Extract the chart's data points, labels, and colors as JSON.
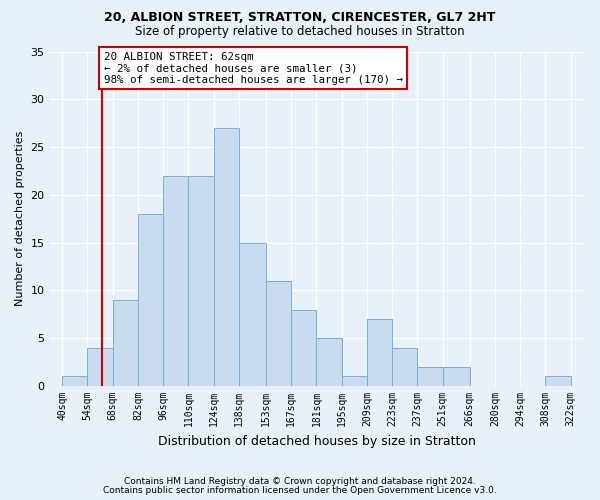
{
  "title1": "20, ALBION STREET, STRATTON, CIRENCESTER, GL7 2HT",
  "title2": "Size of property relative to detached houses in Stratton",
  "xlabel": "Distribution of detached houses by size in Stratton",
  "ylabel": "Number of detached properties",
  "footer1": "Contains HM Land Registry data © Crown copyright and database right 2024.",
  "footer2": "Contains public sector information licensed under the Open Government Licence v3.0.",
  "bar_data": [
    [
      40,
      54,
      1
    ],
    [
      54,
      68,
      4
    ],
    [
      68,
      82,
      9
    ],
    [
      82,
      96,
      18
    ],
    [
      96,
      110,
      22
    ],
    [
      110,
      124,
      22
    ],
    [
      124,
      138,
      27
    ],
    [
      138,
      153,
      15
    ],
    [
      153,
      167,
      11
    ],
    [
      167,
      181,
      8
    ],
    [
      181,
      195,
      5
    ],
    [
      195,
      209,
      1
    ],
    [
      209,
      223,
      7
    ],
    [
      223,
      237,
      4
    ],
    [
      237,
      251,
      2
    ],
    [
      251,
      266,
      2
    ],
    [
      266,
      280,
      0
    ],
    [
      280,
      294,
      0
    ],
    [
      294,
      308,
      0
    ],
    [
      308,
      322,
      1
    ]
  ],
  "xtick_labels": [
    "40sqm",
    "54sqm",
    "68sqm",
    "82sqm",
    "96sqm",
    "110sqm",
    "124sqm",
    "138sqm",
    "153sqm",
    "167sqm",
    "181sqm",
    "195sqm",
    "209sqm",
    "223sqm",
    "237sqm",
    "251sqm",
    "266sqm",
    "280sqm",
    "294sqm",
    "308sqm",
    "322sqm"
  ],
  "xtick_positions": [
    40,
    54,
    68,
    82,
    96,
    110,
    124,
    138,
    153,
    167,
    181,
    195,
    209,
    223,
    237,
    251,
    266,
    280,
    294,
    308,
    322
  ],
  "bar_facecolor": "#c9dcef",
  "bar_edgecolor": "#7bafd4",
  "red_line_x": 62,
  "xlim_left": 33,
  "xlim_right": 330,
  "ylim": [
    0,
    35
  ],
  "yticks": [
    0,
    5,
    10,
    15,
    20,
    25,
    30,
    35
  ],
  "annotation_title": "20 ALBION STREET: 62sqm",
  "annotation_line1": "← 2% of detached houses are smaller (3)",
  "annotation_line2": "98% of semi-detached houses are larger (170) →",
  "bg_color": "#e8f0f8",
  "grid_color": "#ffffff",
  "ann_facecolor": "#ffffff",
  "ann_edgecolor": "#cc0000",
  "title1_fontsize": 9,
  "title2_fontsize": 8.5,
  "ylabel_fontsize": 8,
  "xlabel_fontsize": 9,
  "tick_fontsize": 7,
  "footer_fontsize": 6.5,
  "ann_fontsize": 7.8
}
